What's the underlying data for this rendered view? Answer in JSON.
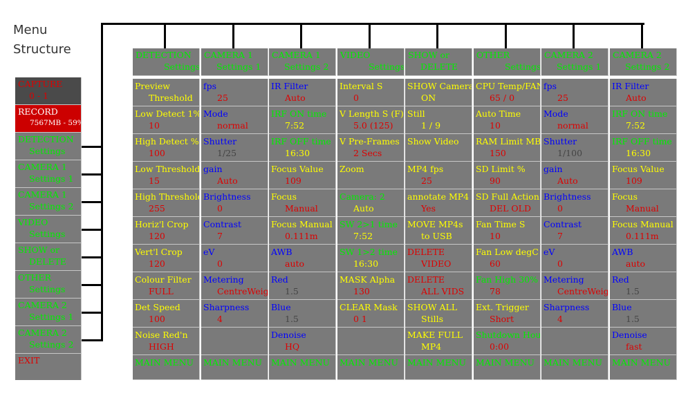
{
  "title": {
    "line1": "Menu",
    "line2": "Structure"
  },
  "colors": {
    "Y": "#ffff00",
    "G": "#00ee00",
    "R": "#dd0000",
    "B": "#0000ff",
    "W": "#ffffff",
    "K": "#444444",
    "cell_bg": "#7a7a7a",
    "capture_bg": "#4a4a4a",
    "record_bg": "#cc0000"
  },
  "sidebar": [
    {
      "id": "capture",
      "l1": "CAPTURE",
      "c1": "R",
      "l2": "0 - 1",
      "c2": "R"
    },
    {
      "id": "record",
      "l1": "RECORD",
      "c1": "W",
      "l2": "7567MB - 59%",
      "c2": "W"
    },
    {
      "id": "detection",
      "l1": "DETECTION",
      "c1": "G",
      "l2": "Settings",
      "c2": "G"
    },
    {
      "id": "camera1-settings1",
      "l1": "CAMERA 1",
      "c1": "G",
      "l2": "Settings 1",
      "c2": "G"
    },
    {
      "id": "camera1-settings2",
      "l1": "CAMERA 1",
      "c1": "G",
      "l2": "Settings 2",
      "c2": "G"
    },
    {
      "id": "video",
      "l1": "VIDEO",
      "c1": "G",
      "l2": "Settings",
      "c2": "G"
    },
    {
      "id": "show-delete",
      "l1": "SHOW or",
      "c1": "G",
      "l2": "DELETE",
      "c2": "G"
    },
    {
      "id": "other",
      "l1": "OTHER",
      "c1": "G",
      "l2": "Settings",
      "c2": "G"
    },
    {
      "id": "camera2-settings1",
      "l1": "CAMERA 2",
      "c1": "G",
      "l2": "Settings 1",
      "c2": "G"
    },
    {
      "id": "camera2-settings2",
      "l1": "CAMERA 2",
      "c1": "G",
      "l2": "Settings 2",
      "c2": "G"
    },
    {
      "id": "exit",
      "l1": "EXIT",
      "c1": "R",
      "l2": "",
      "c2": "R"
    }
  ],
  "columns": [
    {
      "id": "detection",
      "header": {
        "l1": "DETECTION",
        "l2": "Settings"
      },
      "cells": [
        {
          "l1": "Preview",
          "c1": "Y",
          "l2": "Threshold",
          "c2": "Y"
        },
        {
          "l1": "Low Detect 1%",
          "c1": "Y",
          "l2": "10",
          "c2": "R"
        },
        {
          "l1": "High Detect %",
          "c1": "Y",
          "l2": "100",
          "c2": "R"
        },
        {
          "l1": "Low Threshold",
          "c1": "Y",
          "l2": "15",
          "c2": "R"
        },
        {
          "l1": "High Threshold",
          "c1": "Y",
          "l2": "255",
          "c2": "R"
        },
        {
          "l1": "Horiz'l Crop",
          "c1": "Y",
          "l2": "120",
          "c2": "R"
        },
        {
          "l1": "Vert'l Crop",
          "c1": "Y",
          "l2": "120",
          "c2": "R"
        },
        {
          "l1": "Colour Filter",
          "c1": "Y",
          "l2": "FULL",
          "c2": "R"
        },
        {
          "l1": "Det Speed",
          "c1": "Y",
          "l2": "100",
          "c2": "R"
        },
        {
          "l1": "Noise Red'n",
          "c1": "Y",
          "l2": "HIGH",
          "c2": "R"
        },
        {
          "l1": "MAIN MENU",
          "c1": "G",
          "l2": "",
          "c2": "G"
        }
      ]
    },
    {
      "id": "camera1-settings1",
      "header": {
        "l1": "CAMERA 1",
        "l2": "Settings 1"
      },
      "cells": [
        {
          "l1": "fps",
          "c1": "B",
          "l2": "25",
          "c2": "R"
        },
        {
          "l1": "Mode",
          "c1": "B",
          "l2": "normal",
          "c2": "R"
        },
        {
          "l1": "Shutter",
          "c1": "B",
          "l2": "1/25",
          "c2": "K"
        },
        {
          "l1": "gain",
          "c1": "B",
          "l2": "Auto",
          "c2": "R"
        },
        {
          "l1": "Brightness",
          "c1": "B",
          "l2": "0",
          "c2": "R"
        },
        {
          "l1": "Contrast",
          "c1": "B",
          "l2": "7",
          "c2": "R"
        },
        {
          "l1": "eV",
          "c1": "B",
          "l2": "0",
          "c2": "R"
        },
        {
          "l1": "Metering",
          "c1": "B",
          "l2": "CentreWeight",
          "c2": "R"
        },
        {
          "l1": "Sharpness",
          "c1": "B",
          "l2": "4",
          "c2": "R"
        },
        {
          "l1": "",
          "c1": "B",
          "l2": "",
          "c2": "R"
        },
        {
          "l1": "MAIN MENU",
          "c1": "G",
          "l2": "",
          "c2": "G"
        }
      ]
    },
    {
      "id": "camera1-settings2",
      "header": {
        "l1": "CAMERA 1",
        "l2": "Settings 2"
      },
      "cells": [
        {
          "l1": "IR Filter",
          "c1": "B",
          "l2": "Auto",
          "c2": "R"
        },
        {
          "l1": "IRF ON time",
          "c1": "G",
          "l2": "7:52",
          "c2": "Y"
        },
        {
          "l1": "IRF OFF time",
          "c1": "G",
          "l2": "16:30",
          "c2": "Y"
        },
        {
          "l1": "Focus Value",
          "c1": "Y",
          "l2": "109",
          "c2": "R"
        },
        {
          "l1": "Focus",
          "c1": "Y",
          "l2": "Manual",
          "c2": "R"
        },
        {
          "l1": "Focus Manual",
          "c1": "Y",
          "l2": "0.111m",
          "c2": "R"
        },
        {
          "l1": "AWB",
          "c1": "B",
          "l2": "auto",
          "c2": "R"
        },
        {
          "l1": "Red",
          "c1": "B",
          "l2": "1.5",
          "c2": "K"
        },
        {
          "l1": "Blue",
          "c1": "B",
          "l2": "1.5",
          "c2": "K"
        },
        {
          "l1": "Denoise",
          "c1": "B",
          "l2": "HQ",
          "c2": "R"
        },
        {
          "l1": "MAIN MENU",
          "c1": "G",
          "l2": "",
          "c2": "G"
        }
      ]
    },
    {
      "id": "video",
      "header": {
        "l1": "VIDEO",
        "l2": "Settings"
      },
      "cells": [
        {
          "l1": "Interval S",
          "c1": "Y",
          "l2": "0",
          "c2": "R"
        },
        {
          "l1": "V Length S (F)",
          "c1": "Y",
          "l2": "5.0  (125)",
          "c2": "R"
        },
        {
          "l1": "V Pre-Frames",
          "c1": "Y",
          "l2": "2 Secs",
          "c2": "R"
        },
        {
          "l1": "Zoom",
          "c1": "Y",
          "l2": "",
          "c2": "R"
        },
        {
          "l1": "Camera: 2",
          "c1": "G",
          "l2": "Auto",
          "c2": "Y"
        },
        {
          "l1": "SW 2>1 time",
          "c1": "G",
          "l2": "7:52",
          "c2": "Y"
        },
        {
          "l1": "SW 1>2 time",
          "c1": "G",
          "l2": "16:30",
          "c2": "Y"
        },
        {
          "l1": "MASK Alpha",
          "c1": "Y",
          "l2": "130",
          "c2": "R"
        },
        {
          "l1": "CLEAR Mask",
          "c1": "Y",
          "l2": "0      1",
          "c2": "R"
        },
        {
          "l1": "",
          "c1": "Y",
          "l2": "",
          "c2": "R"
        },
        {
          "l1": "MAIN MENU",
          "c1": "G",
          "l2": "",
          "c2": "G"
        }
      ]
    },
    {
      "id": "show-delete",
      "header": {
        "l1": "SHOW or",
        "l2": "DELETE"
      },
      "cells": [
        {
          "l1": "SHOW Camera",
          "c1": "Y",
          "l2": "ON",
          "c2": "Y"
        },
        {
          "l1": "Still",
          "c1": "Y",
          "l2": "1 / 9",
          "c2": "Y"
        },
        {
          "l1": "Show Video",
          "c1": "Y",
          "l2": "",
          "c2": "Y"
        },
        {
          "l1": "MP4 fps",
          "c1": "Y",
          "l2": "25",
          "c2": "R"
        },
        {
          "l1": "annotate MP4",
          "c1": "Y",
          "l2": "Yes",
          "c2": "R"
        },
        {
          "l1": "MOVE MP4s",
          "c1": "Y",
          "l2": "to USB",
          "c2": "Y"
        },
        {
          "l1": "DELETE",
          "c1": "R",
          "l2": "VIDEO",
          "c2": "R"
        },
        {
          "l1": "DELETE",
          "c1": "R",
          "l2": "ALL VIDS",
          "c2": "R"
        },
        {
          "l1": "SHOW ALL",
          "c1": "Y",
          "l2": "Stills",
          "c2": "Y"
        },
        {
          "l1": "MAKE FULL",
          "c1": "Y",
          "l2": "MP4",
          "c2": "Y"
        },
        {
          "l1": "MAIN MENU",
          "c1": "G",
          "l2": "",
          "c2": "G"
        }
      ]
    },
    {
      "id": "other",
      "header": {
        "l1": "OTHER",
        "l2": "Settings"
      },
      "cells": [
        {
          "l1": "CPU Temp/FAN",
          "c1": "Y",
          "l2": "65 / 0",
          "c2": "R"
        },
        {
          "l1": "Auto Time",
          "c1": "Y",
          "l2": "10",
          "c2": "R"
        },
        {
          "l1": "RAM Limit MB",
          "c1": "Y",
          "l2": "150",
          "c2": "R"
        },
        {
          "l1": "SD Limit %",
          "c1": "Y",
          "l2": "90",
          "c2": "R"
        },
        {
          "l1": "SD Full Action",
          "c1": "Y",
          "l2": "DEL OLD",
          "c2": "R"
        },
        {
          "l1": "Fan Time S",
          "c1": "Y",
          "l2": "10",
          "c2": "R"
        },
        {
          "l1": "Fan Low degC",
          "c1": "Y",
          "l2": "60",
          "c2": "R"
        },
        {
          "l1": "Fan High  30%",
          "c1": "G",
          "l2": "78",
          "c2": "R"
        },
        {
          "l1": "Ext. Trigger",
          "c1": "Y",
          "l2": "Short",
          "c2": "R"
        },
        {
          "l1": "Shutdown Hour",
          "c1": "G",
          "l2": "0:00",
          "c2": "R"
        },
        {
          "l1": "MAIN MENU",
          "c1": "G",
          "l2": "",
          "c2": "G"
        }
      ]
    },
    {
      "id": "camera2-settings1",
      "header": {
        "l1": "CAMERA 2",
        "l2": "Settings 1"
      },
      "cells": [
        {
          "l1": "fps",
          "c1": "B",
          "l2": "25",
          "c2": "R"
        },
        {
          "l1": "Mode",
          "c1": "B",
          "l2": "normal",
          "c2": "R"
        },
        {
          "l1": "Shutter",
          "c1": "B",
          "l2": "1/100",
          "c2": "K"
        },
        {
          "l1": "gain",
          "c1": "B",
          "l2": "Auto",
          "c2": "R"
        },
        {
          "l1": "Brightness",
          "c1": "B",
          "l2": "0",
          "c2": "R"
        },
        {
          "l1": "Contrast",
          "c1": "B",
          "l2": "7",
          "c2": "R"
        },
        {
          "l1": "eV",
          "c1": "B",
          "l2": "0",
          "c2": "R"
        },
        {
          "l1": "Metering",
          "c1": "B",
          "l2": "CentreWeight",
          "c2": "R"
        },
        {
          "l1": "Sharpness",
          "c1": "B",
          "l2": "4",
          "c2": "R"
        },
        {
          "l1": "",
          "c1": "B",
          "l2": "",
          "c2": "R"
        },
        {
          "l1": "MAIN MENU",
          "c1": "G",
          "l2": "",
          "c2": "G"
        }
      ]
    },
    {
      "id": "camera2-settings2",
      "header": {
        "l1": "CAMERA 2",
        "l2": "Settings 2"
      },
      "cells": [
        {
          "l1": "IR Filter",
          "c1": "B",
          "l2": "Auto",
          "c2": "R"
        },
        {
          "l1": "IRF ON time",
          "c1": "G",
          "l2": "7:52",
          "c2": "Y"
        },
        {
          "l1": "IRF OFF time",
          "c1": "G",
          "l2": "16:30",
          "c2": "Y"
        },
        {
          "l1": "Focus Value",
          "c1": "Y",
          "l2": "109",
          "c2": "R"
        },
        {
          "l1": "Focus",
          "c1": "Y",
          "l2": "Manual",
          "c2": "R"
        },
        {
          "l1": "Focus Manual",
          "c1": "Y",
          "l2": "0.111m",
          "c2": "R"
        },
        {
          "l1": "AWB",
          "c1": "B",
          "l2": "auto",
          "c2": "R"
        },
        {
          "l1": "Red",
          "c1": "B",
          "l2": "1.5",
          "c2": "K"
        },
        {
          "l1": "Blue",
          "c1": "B",
          "l2": "1.5",
          "c2": "K"
        },
        {
          "l1": "Denoise",
          "c1": "B",
          "l2": "fast",
          "c2": "R"
        },
        {
          "l1": "MAIN MENU",
          "c1": "G",
          "l2": "",
          "c2": "G"
        }
      ]
    }
  ]
}
